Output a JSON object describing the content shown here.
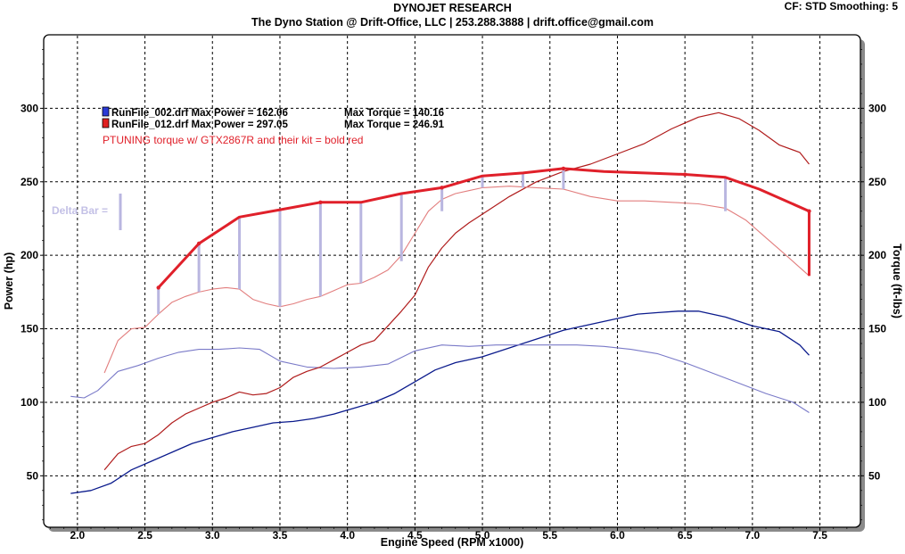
{
  "header": {
    "title": "DYNOJET RESEARCH",
    "subtitle": "The Dyno Station @ Drift-Office, LLC | 253.288.3888 | drift.office@gmail.com",
    "settings": "CF: STD   Smoothing: 5"
  },
  "colors": {
    "blue": "#0a1a8c",
    "red": "#c81e1e",
    "bold_red": "#e0202a",
    "delta": "#b9b6e0"
  },
  "chart_data": {
    "type": "line",
    "xlabel": "Engine Speed (RPM x1000)",
    "ylabel_left": "Power (hp)",
    "ylabel_right": "Torque (ft-lbs)",
    "xlim": [
      1.75,
      7.8
    ],
    "ylim": [
      15,
      350
    ],
    "x_ticks": [
      "2.0",
      "2.5",
      "3.0",
      "3.5",
      "4.0",
      "4.5",
      "5.0",
      "5.5",
      "6.0",
      "6.5",
      "7.0",
      "7.5"
    ],
    "y_ticks_left": [
      "50",
      "100",
      "150",
      "200",
      "250",
      "300"
    ],
    "y_ticks_right": [
      "50",
      "100",
      "150",
      "200",
      "250",
      "300"
    ],
    "grid": true,
    "legend": {
      "runs": [
        {
          "file": "RunFile_002.drf",
          "power_label": "Max Power = 162.06",
          "torque_label": "Max Torque = 140.16",
          "color": "#2a3ad6"
        },
        {
          "file": "RunFile_012.drf",
          "power_label": "Max Power = 297.05",
          "torque_label": "Max Torque = 246.91",
          "color": "#e02020"
        }
      ],
      "note": "PTUNING torque w/ GTX2867R and their kit = bold red"
    },
    "delta_bar_label": "Delta Bar =",
    "series": [
      {
        "name": "RunFile_002.drf Power",
        "style": "dark-blue",
        "x": [
          1.95,
          2.1,
          2.25,
          2.4,
          2.55,
          2.7,
          2.85,
          3.0,
          3.15,
          3.3,
          3.45,
          3.6,
          3.75,
          3.9,
          4.05,
          4.2,
          4.35,
          4.5,
          4.65,
          4.8,
          5.0,
          5.2,
          5.4,
          5.6,
          5.8,
          6.0,
          6.15,
          6.3,
          6.45,
          6.6,
          6.8,
          7.0,
          7.2,
          7.35,
          7.42
        ],
        "y": [
          38,
          40,
          45,
          54,
          60,
          66,
          72,
          76,
          80,
          83,
          86,
          87,
          89,
          92,
          96,
          100,
          106,
          114,
          122,
          127,
          131,
          137,
          143,
          149,
          153,
          157,
          160,
          161,
          162,
          162,
          158,
          152,
          148,
          139,
          132
        ]
      },
      {
        "name": "RunFile_002.drf Torque",
        "style": "light-blue",
        "x": [
          1.95,
          2.05,
          2.15,
          2.3,
          2.45,
          2.6,
          2.75,
          2.9,
          3.05,
          3.2,
          3.35,
          3.5,
          3.7,
          3.9,
          4.1,
          4.3,
          4.5,
          4.7,
          4.9,
          5.1,
          5.3,
          5.5,
          5.7,
          5.9,
          6.1,
          6.3,
          6.5,
          6.7,
          6.9,
          7.1,
          7.3,
          7.42
        ],
        "y": [
          104,
          103,
          108,
          121,
          125,
          130,
          134,
          136,
          136,
          137,
          136,
          128,
          124,
          123,
          124,
          126,
          135,
          139,
          138,
          139,
          139,
          139,
          139,
          138,
          136,
          133,
          127,
          120,
          113,
          106,
          100,
          93
        ]
      },
      {
        "name": "RunFile_012.drf Power",
        "style": "dark-red",
        "x": [
          2.2,
          2.3,
          2.4,
          2.5,
          2.6,
          2.7,
          2.8,
          2.9,
          3.0,
          3.1,
          3.2,
          3.3,
          3.4,
          3.5,
          3.6,
          3.7,
          3.8,
          3.9,
          4.0,
          4.1,
          4.2,
          4.3,
          4.4,
          4.5,
          4.6,
          4.7,
          4.8,
          4.9,
          5.0,
          5.2,
          5.4,
          5.6,
          5.8,
          6.0,
          6.2,
          6.4,
          6.6,
          6.75,
          6.9,
          7.05,
          7.2,
          7.35,
          7.42
        ],
        "y": [
          54,
          65,
          70,
          72,
          78,
          86,
          92,
          96,
          100,
          103,
          107,
          105,
          106,
          110,
          117,
          121,
          124,
          129,
          134,
          139,
          142,
          152,
          162,
          173,
          192,
          205,
          215,
          222,
          228,
          240,
          250,
          257,
          262,
          269,
          276,
          286,
          294,
          297,
          293,
          285,
          275,
          270,
          262
        ]
      },
      {
        "name": "RunFile_012.drf Torque",
        "style": "light-red",
        "x": [
          2.2,
          2.3,
          2.4,
          2.5,
          2.6,
          2.7,
          2.8,
          2.9,
          3.0,
          3.1,
          3.2,
          3.3,
          3.4,
          3.5,
          3.6,
          3.7,
          3.8,
          3.9,
          4.0,
          4.1,
          4.2,
          4.3,
          4.4,
          4.5,
          4.6,
          4.7,
          4.8,
          4.9,
          5.0,
          5.2,
          5.4,
          5.6,
          5.8,
          6.0,
          6.2,
          6.4,
          6.6,
          6.8,
          6.95,
          7.1,
          7.25,
          7.42
        ],
        "y": [
          120,
          142,
          150,
          151,
          160,
          168,
          172,
          175,
          177,
          178,
          177,
          170,
          167,
          165,
          167,
          170,
          172,
          176,
          180,
          181,
          185,
          190,
          200,
          215,
          230,
          238,
          242,
          244,
          246,
          247,
          246,
          245,
          240,
          237,
          237,
          236,
          235,
          232,
          224,
          212,
          200,
          186
        ]
      },
      {
        "name": "PTUNING torque w/ GTX2867R",
        "style": "bold-red",
        "x": [
          2.6,
          2.9,
          3.2,
          3.5,
          3.8,
          4.1,
          4.4,
          4.7,
          5.0,
          5.3,
          5.6,
          5.9,
          6.2,
          6.5,
          6.8,
          7.05,
          7.42
        ],
        "y": [
          178,
          208,
          226,
          231,
          236,
          236,
          242,
          246,
          254,
          256,
          259,
          257,
          256,
          255,
          253,
          245,
          230
        ],
        "end_drop_to": 186
      }
    ],
    "delta_bars": [
      {
        "x": 2.6,
        "y_top": 178,
        "y_bottom": 160
      },
      {
        "x": 2.9,
        "y_top": 208,
        "y_bottom": 175
      },
      {
        "x": 3.2,
        "y_top": 226,
        "y_bottom": 177
      },
      {
        "x": 3.5,
        "y_top": 231,
        "y_bottom": 165
      },
      {
        "x": 3.8,
        "y_top": 236,
        "y_bottom": 172
      },
      {
        "x": 4.1,
        "y_top": 236,
        "y_bottom": 181
      },
      {
        "x": 4.4,
        "y_top": 242,
        "y_bottom": 196
      },
      {
        "x": 4.7,
        "y_top": 246,
        "y_bottom": 230
      },
      {
        "x": 5.0,
        "y_top": 254,
        "y_bottom": 246
      },
      {
        "x": 5.3,
        "y_top": 256,
        "y_bottom": 246
      },
      {
        "x": 5.6,
        "y_top": 259,
        "y_bottom": 245
      },
      {
        "x": 6.8,
        "y_top": 253,
        "y_bottom": 230
      }
    ]
  }
}
